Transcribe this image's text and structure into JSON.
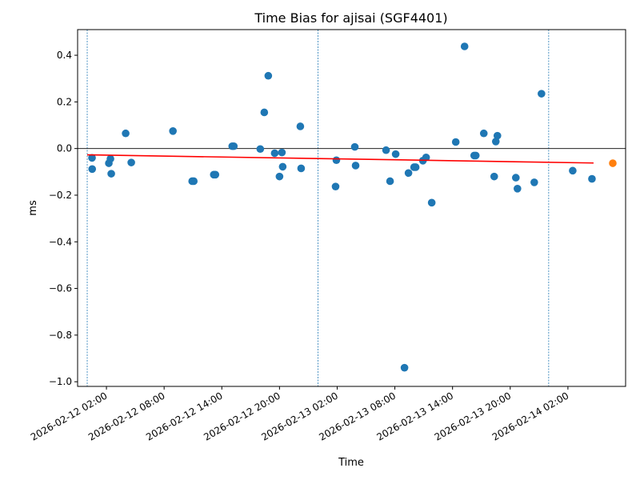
{
  "chart_data": {
    "type": "scatter",
    "title": "Time Bias for ajisai (SGF4401)",
    "xlabel": "Time",
    "ylabel": "ms",
    "xlim": [
      "2026-02-11T23:00",
      "2026-02-14T08:00"
    ],
    "ylim": [
      -1.02,
      0.51
    ],
    "grid": false,
    "legend": "none",
    "x_ticks": [
      "2026-02-12 02:00",
      "2026-02-12 08:00",
      "2026-02-12 14:00",
      "2026-02-12 20:00",
      "2026-02-13 02:00",
      "2026-02-13 08:00",
      "2026-02-13 14:00",
      "2026-02-13 20:00",
      "2026-02-14 02:00"
    ],
    "y_ticks": [
      "0.4",
      "0.2",
      "0.0",
      "−0.2",
      "−0.4",
      "−0.6",
      "−0.8",
      "−1.0"
    ],
    "vertical_lines": [
      "2026-02-12T00:00",
      "2026-02-13T00:00",
      "2026-02-14T00:00"
    ],
    "zero_line": 0.0,
    "trend_line": {
      "x": [
        "2026-02-12T00:00",
        "2026-02-14T04:40"
      ],
      "y": [
        -0.027,
        -0.062
      ],
      "color": "#ff0000"
    },
    "series": [
      {
        "color": "#1f77b4",
        "points": [
          {
            "x": "2026-02-12T00:30",
            "y": -0.04
          },
          {
            "x": "2026-02-12T00:31",
            "y": -0.088
          },
          {
            "x": "2026-02-12T02:15",
            "y": -0.063
          },
          {
            "x": "2026-02-12T02:25",
            "y": -0.044
          },
          {
            "x": "2026-02-12T02:30",
            "y": -0.108
          },
          {
            "x": "2026-02-12T04:00",
            "y": 0.065
          },
          {
            "x": "2026-02-12T04:35",
            "y": -0.06
          },
          {
            "x": "2026-02-12T08:55",
            "y": 0.075
          },
          {
            "x": "2026-02-12T10:55",
            "y": -0.14
          },
          {
            "x": "2026-02-12T11:05",
            "y": -0.14
          },
          {
            "x": "2026-02-12T13:10",
            "y": -0.112
          },
          {
            "x": "2026-02-12T13:20",
            "y": -0.112
          },
          {
            "x": "2026-02-12T15:05",
            "y": 0.01
          },
          {
            "x": "2026-02-12T15:15",
            "y": 0.01
          },
          {
            "x": "2026-02-12T18:00",
            "y": -0.002
          },
          {
            "x": "2026-02-12T18:25",
            "y": 0.155
          },
          {
            "x": "2026-02-12T18:50",
            "y": 0.312
          },
          {
            "x": "2026-02-12T19:30",
            "y": -0.02
          },
          {
            "x": "2026-02-12T20:00",
            "y": -0.12
          },
          {
            "x": "2026-02-12T20:15",
            "y": -0.017
          },
          {
            "x": "2026-02-12T20:20",
            "y": -0.078
          },
          {
            "x": "2026-02-12T22:10",
            "y": 0.095
          },
          {
            "x": "2026-02-12T22:15",
            "y": -0.085
          },
          {
            "x": "2026-02-13T01:55",
            "y": -0.05
          },
          {
            "x": "2026-02-13T01:50",
            "y": -0.163
          },
          {
            "x": "2026-02-13T03:50",
            "y": 0.007
          },
          {
            "x": "2026-02-13T03:55",
            "y": -0.073
          },
          {
            "x": "2026-02-13T07:05",
            "y": -0.007
          },
          {
            "x": "2026-02-13T07:30",
            "y": -0.14
          },
          {
            "x": "2026-02-13T08:05",
            "y": -0.024
          },
          {
            "x": "2026-02-13T09:00",
            "y": -0.94
          },
          {
            "x": "2026-02-13T09:25",
            "y": -0.105
          },
          {
            "x": "2026-02-13T10:00",
            "y": -0.08
          },
          {
            "x": "2026-02-13T10:10",
            "y": -0.08
          },
          {
            "x": "2026-02-13T10:55",
            "y": -0.052
          },
          {
            "x": "2026-02-13T11:15",
            "y": -0.038
          },
          {
            "x": "2026-02-13T11:50",
            "y": -0.232
          },
          {
            "x": "2026-02-13T14:20",
            "y": 0.028
          },
          {
            "x": "2026-02-13T15:15",
            "y": 0.438
          },
          {
            "x": "2026-02-13T16:15",
            "y": -0.03
          },
          {
            "x": "2026-02-13T16:25",
            "y": -0.03
          },
          {
            "x": "2026-02-13T17:15",
            "y": 0.065
          },
          {
            "x": "2026-02-13T18:20",
            "y": -0.12
          },
          {
            "x": "2026-02-13T18:30",
            "y": 0.03
          },
          {
            "x": "2026-02-13T18:40",
            "y": 0.055
          },
          {
            "x": "2026-02-13T20:35",
            "y": -0.125
          },
          {
            "x": "2026-02-13T20:45",
            "y": -0.172
          },
          {
            "x": "2026-02-13T22:30",
            "y": -0.145
          },
          {
            "x": "2026-02-13T23:15",
            "y": 0.235
          },
          {
            "x": "2026-02-14T02:30",
            "y": -0.095
          },
          {
            "x": "2026-02-14T04:30",
            "y": -0.13
          }
        ]
      },
      {
        "color": "#ff7f0e",
        "points": [
          {
            "x": "2026-02-14T06:40",
            "y": -0.063
          }
        ]
      }
    ]
  }
}
